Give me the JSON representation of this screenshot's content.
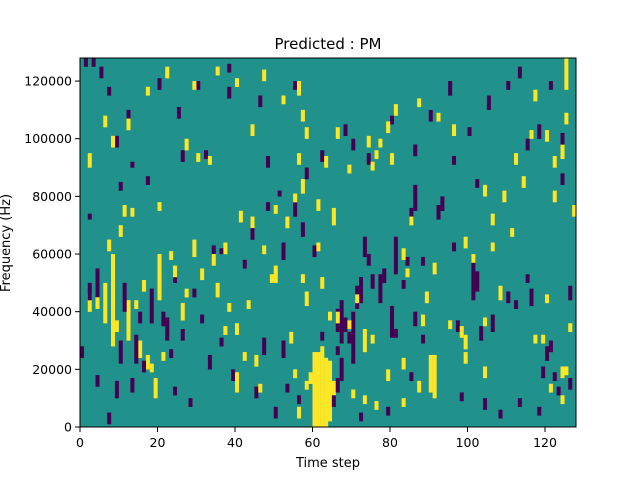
{
  "chart_data": {
    "type": "heatmap",
    "title": "Predicted : PM",
    "xlabel": "Time step",
    "ylabel": "Frequency (Hz)",
    "xlim": [
      0,
      128
    ],
    "ylim": [
      0,
      128000
    ],
    "x_ticks": [
      0,
      20,
      40,
      60,
      80,
      100,
      120
    ],
    "y_ticks": [
      0,
      20000,
      40000,
      60000,
      80000,
      100000,
      120000
    ],
    "y_tick_labels": [
      "0",
      "20000",
      "40000",
      "60000",
      "80000",
      "100000",
      "120000"
    ],
    "grid": false,
    "legend": "none",
    "n_time_steps": 128,
    "n_freq_bins": 128,
    "value_levels": [
      0,
      1,
      2
    ],
    "colors": {
      "0": "#440154",
      "1": "#21918c",
      "2": "#fde725"
    },
    "background_level": 1,
    "cells": [
      [
        2,
        46,
        40,
        2
      ],
      [
        6,
        50,
        36,
        2
      ],
      [
        8,
        60,
        28,
        2
      ],
      [
        12,
        44,
        30,
        2
      ],
      [
        15,
        30,
        24,
        2
      ],
      [
        17,
        25,
        20,
        2
      ],
      [
        19,
        17,
        10,
        2
      ],
      [
        26,
        43,
        37,
        2
      ],
      [
        20,
        60,
        44,
        2
      ],
      [
        29,
        65,
        59,
        2
      ],
      [
        41,
        75,
        71,
        2
      ],
      [
        44,
        73,
        67,
        2
      ],
      [
        50,
        56,
        50,
        2
      ],
      [
        60,
        26,
        0,
        2
      ],
      [
        61,
        26,
        0,
        2
      ],
      [
        62,
        28,
        0,
        2
      ],
      [
        63,
        24,
        0,
        2
      ],
      [
        64,
        23,
        2,
        2
      ],
      [
        65,
        16,
        8,
        2
      ],
      [
        60,
        15,
        0,
        2
      ],
      [
        60,
        22,
        20,
        2
      ],
      [
        62,
        10,
        6,
        2
      ],
      [
        90,
        25,
        12,
        2
      ],
      [
        91,
        25,
        10,
        2
      ],
      [
        99,
        32,
        27,
        2
      ],
      [
        58,
        16,
        13,
        2
      ],
      [
        59,
        19,
        15,
        2
      ],
      [
        58,
        47,
        45,
        2
      ],
      [
        108,
        49,
        44,
        2
      ],
      [
        124,
        98,
        93,
        2
      ],
      [
        125,
        128,
        117,
        2
      ],
      [
        57,
        86,
        81,
        2
      ],
      [
        65,
        76,
        70,
        2
      ],
      [
        73,
        34,
        26,
        2
      ],
      [
        35,
        50,
        45,
        2
      ],
      [
        2,
        50,
        44,
        0
      ],
      [
        4,
        55,
        44,
        0
      ],
      [
        11,
        50,
        40,
        0
      ],
      [
        15,
        40,
        36,
        0
      ],
      [
        18,
        48,
        36,
        0
      ],
      [
        22,
        38,
        30,
        0
      ],
      [
        26,
        34,
        30,
        0
      ],
      [
        10,
        30,
        22,
        0
      ],
      [
        14,
        32,
        22,
        0
      ],
      [
        9,
        16,
        10,
        0
      ],
      [
        13,
        17,
        12,
        0
      ],
      [
        33,
        25,
        20,
        0
      ],
      [
        47,
        31,
        25,
        0
      ],
      [
        52,
        30,
        24,
        0
      ],
      [
        66,
        41,
        33,
        0
      ],
      [
        67,
        44,
        29,
        0
      ],
      [
        68,
        38,
        33,
        0
      ],
      [
        69,
        33,
        29,
        0
      ],
      [
        70,
        40,
        22,
        0
      ],
      [
        66,
        28,
        25,
        0
      ],
      [
        65,
        11,
        7,
        0
      ],
      [
        66,
        17,
        12,
        0
      ],
      [
        67,
        24,
        16,
        0
      ],
      [
        80,
        42,
        31,
        0
      ],
      [
        81,
        34,
        31,
        0
      ],
      [
        77,
        53,
        43,
        0
      ],
      [
        71,
        49,
        41,
        0
      ],
      [
        72,
        52,
        43,
        0
      ],
      [
        73,
        66,
        59,
        0
      ],
      [
        74,
        60,
        56,
        0
      ],
      [
        81,
        66,
        53,
        0
      ],
      [
        86,
        40,
        35,
        0
      ],
      [
        96,
        64,
        61,
        0
      ],
      [
        101,
        59,
        44,
        0
      ],
      [
        102,
        54,
        47,
        0
      ],
      [
        112,
        44,
        41,
        0
      ],
      [
        116,
        48,
        42,
        0
      ],
      [
        120,
        28,
        23,
        0
      ],
      [
        121,
        30,
        26,
        0
      ],
      [
        122,
        19,
        16,
        0
      ],
      [
        126,
        49,
        44,
        0
      ],
      [
        126,
        17,
        13,
        0
      ],
      [
        119,
        21,
        17,
        0
      ],
      [
        106,
        39,
        33,
        0
      ],
      [
        103,
        35,
        30,
        0
      ],
      [
        86,
        84,
        75,
        0
      ],
      [
        85,
        76,
        71,
        0
      ],
      [
        83,
        51,
        48,
        0
      ],
      [
        52,
        64,
        58,
        0
      ],
      [
        60,
        63,
        59,
        0
      ],
      [
        75,
        53,
        48,
        0
      ],
      [
        78,
        55,
        50,
        0
      ],
      [
        84,
        59,
        56,
        0
      ],
      [
        88,
        59,
        56,
        0
      ],
      [
        34,
        63,
        59,
        0
      ],
      [
        29,
        48,
        45,
        0
      ],
      [
        31,
        39,
        36,
        0
      ],
      [
        24,
        53,
        50,
        0
      ],
      [
        21,
        40,
        35,
        0
      ],
      [
        48,
        78,
        75,
        0
      ],
      [
        55,
        78,
        73,
        0
      ],
      [
        57,
        71,
        66,
        0
      ],
      [
        42,
        58,
        55,
        0
      ],
      [
        48,
        94,
        90,
        0
      ],
      [
        51,
        82,
        80,
        0
      ],
      [
        2,
        74,
        72,
        0
      ],
      [
        10,
        85,
        82,
        0
      ],
      [
        13,
        92,
        90,
        0
      ],
      [
        17,
        87,
        84,
        0
      ],
      [
        26,
        96,
        92,
        0
      ],
      [
        32,
        96,
        93,
        0
      ],
      [
        38,
        126,
        123,
        0
      ],
      [
        38,
        118,
        114,
        0
      ],
      [
        36,
        62,
        60,
        0
      ],
      [
        93,
        80,
        75,
        0
      ],
      [
        105,
        115,
        110,
        0
      ],
      [
        110,
        120,
        117,
        0
      ],
      [
        113,
        125,
        121,
        0
      ],
      [
        115,
        100,
        96,
        0
      ],
      [
        118,
        105,
        100,
        0
      ],
      [
        121,
        120,
        117,
        0
      ],
      [
        124,
        88,
        84,
        0
      ],
      [
        124,
        102,
        98,
        0
      ],
      [
        102,
        86,
        83,
        0
      ],
      [
        100,
        104,
        101,
        0
      ],
      [
        95,
        120,
        115,
        0
      ],
      [
        90,
        110,
        106,
        0
      ],
      [
        86,
        98,
        94,
        0
      ],
      [
        80,
        108,
        105,
        0
      ],
      [
        74,
        95,
        91,
        0
      ],
      [
        70,
        100,
        96,
        0
      ],
      [
        68,
        105,
        101,
        0
      ],
      [
        62,
        96,
        92,
        0
      ],
      [
        58,
        90,
        86,
        0
      ],
      [
        55,
        120,
        117,
        0
      ],
      [
        46,
        115,
        111,
        0
      ],
      [
        30,
        120,
        117,
        0
      ],
      [
        12,
        110,
        106,
        0
      ],
      [
        20,
        121,
        117,
        0
      ],
      [
        25,
        111,
        107,
        0
      ],
      [
        9,
        101,
        97,
        0
      ],
      [
        5,
        125,
        121,
        0
      ],
      [
        3,
        128,
        125,
        0
      ],
      [
        1,
        128,
        125,
        0
      ],
      [
        7,
        118,
        115,
        0
      ],
      [
        44,
        69,
        65,
        0
      ],
      [
        92,
        77,
        72,
        0
      ],
      [
        96,
        94,
        91,
        0
      ],
      [
        98,
        12,
        9,
        0
      ],
      [
        104,
        10,
        6,
        0
      ],
      [
        108,
        6,
        3,
        0
      ],
      [
        113,
        10,
        7,
        0
      ],
      [
        118,
        7,
        4,
        0
      ],
      [
        123,
        14,
        11,
        0
      ],
      [
        53,
        15,
        12,
        0
      ],
      [
        50,
        7,
        3,
        0
      ],
      [
        45,
        14,
        10,
        0
      ],
      [
        39,
        20,
        16,
        0
      ],
      [
        28,
        10,
        7,
        0
      ],
      [
        16,
        23,
        19,
        0
      ],
      [
        24,
        14,
        11,
        0
      ],
      [
        7,
        5,
        1,
        0
      ],
      [
        4,
        18,
        14,
        0
      ],
      [
        0,
        28,
        24,
        0
      ],
      [
        23,
        27,
        24,
        0
      ],
      [
        36,
        31,
        28,
        0
      ],
      [
        56,
        11,
        8,
        0
      ],
      [
        62,
        33,
        30,
        0
      ],
      [
        72,
        5,
        2,
        0
      ],
      [
        79,
        7,
        4,
        0
      ],
      [
        85,
        19,
        16,
        0
      ],
      [
        88,
        32,
        29,
        0
      ],
      [
        97,
        37,
        33,
        0
      ],
      [
        110,
        47,
        43,
        0
      ],
      [
        115,
        53,
        50,
        0
      ],
      [
        4,
        45,
        41,
        2
      ],
      [
        9,
        37,
        33,
        2
      ],
      [
        14,
        44,
        41,
        2
      ],
      [
        18,
        22,
        19,
        2
      ],
      [
        21,
        26,
        23,
        2
      ],
      [
        24,
        56,
        52,
        2
      ],
      [
        27,
        48,
        45,
        2
      ],
      [
        31,
        55,
        51,
        2
      ],
      [
        34,
        60,
        56,
        2
      ],
      [
        40,
        36,
        32,
        2
      ],
      [
        40,
        19,
        12,
        2
      ],
      [
        42,
        26,
        23,
        2
      ],
      [
        45,
        25,
        21,
        2
      ],
      [
        46,
        15,
        12,
        2
      ],
      [
        49,
        53,
        50,
        2
      ],
      [
        54,
        33,
        29,
        2
      ],
      [
        56,
        7,
        3,
        2
      ],
      [
        55,
        20,
        17,
        2
      ],
      [
        57,
        53,
        50,
        2
      ],
      [
        53,
        73,
        69,
        2
      ],
      [
        55,
        81,
        78,
        2
      ],
      [
        56,
        95,
        91,
        2
      ],
      [
        57,
        110,
        106,
        2
      ],
      [
        56,
        120,
        115,
        2
      ],
      [
        58,
        104,
        100,
        2
      ],
      [
        62,
        52,
        48,
        2
      ],
      [
        64,
        40,
        37,
        2
      ],
      [
        69,
        37,
        34,
        2
      ],
      [
        71,
        46,
        43,
        2
      ],
      [
        75,
        32,
        29,
        2
      ],
      [
        75,
        92,
        89,
        2
      ],
      [
        76,
        96,
        93,
        2
      ],
      [
        77,
        100,
        97,
        2
      ],
      [
        79,
        106,
        102,
        2
      ],
      [
        81,
        112,
        108,
        2
      ],
      [
        83,
        62,
        58,
        2
      ],
      [
        85,
        73,
        70,
        2
      ],
      [
        83,
        24,
        20,
        2
      ],
      [
        83,
        10,
        7,
        2
      ],
      [
        87,
        16,
        12,
        2
      ],
      [
        88,
        39,
        35,
        2
      ],
      [
        89,
        47,
        43,
        2
      ],
      [
        91,
        57,
        53,
        2
      ],
      [
        95,
        37,
        34,
        2
      ],
      [
        98,
        35,
        31,
        2
      ],
      [
        99,
        26,
        22,
        2
      ],
      [
        99,
        66,
        62,
        2
      ],
      [
        101,
        60,
        57,
        2
      ],
      [
        104,
        21,
        17,
        2
      ],
      [
        104,
        38,
        35,
        2
      ],
      [
        106,
        64,
        61,
        2
      ],
      [
        106,
        74,
        70,
        2
      ],
      [
        109,
        82,
        78,
        2
      ],
      [
        111,
        69,
        66,
        2
      ],
      [
        114,
        87,
        83,
        2
      ],
      [
        117,
        32,
        29,
        2
      ],
      [
        119,
        32,
        29,
        2
      ],
      [
        121,
        15,
        12,
        2
      ],
      [
        124,
        11,
        8,
        2
      ],
      [
        120,
        46,
        43,
        2
      ],
      [
        124,
        21,
        17,
        2
      ],
      [
        125,
        21,
        18,
        2
      ],
      [
        126,
        36,
        33,
        2
      ],
      [
        127,
        77,
        73,
        2
      ],
      [
        122,
        82,
        78,
        2
      ],
      [
        122,
        94,
        90,
        2
      ],
      [
        125,
        109,
        105,
        2
      ],
      [
        117,
        117,
        113,
        2
      ],
      [
        116,
        103,
        100,
        2
      ],
      [
        120,
        103,
        99,
        2
      ],
      [
        112,
        95,
        91,
        2
      ],
      [
        104,
        84,
        80,
        2
      ],
      [
        96,
        105,
        101,
        2
      ],
      [
        92,
        109,
        106,
        2
      ],
      [
        87,
        114,
        111,
        2
      ],
      [
        80,
        95,
        91,
        2
      ],
      [
        74,
        101,
        97,
        2
      ],
      [
        69,
        91,
        88,
        2
      ],
      [
        66,
        104,
        100,
        2
      ],
      [
        61,
        79,
        75,
        2
      ],
      [
        58,
        45,
        42,
        2
      ],
      [
        52,
        115,
        112,
        2
      ],
      [
        47,
        124,
        120,
        2
      ],
      [
        44,
        105,
        101,
        2
      ],
      [
        40,
        121,
        118,
        2
      ],
      [
        35,
        125,
        122,
        2
      ],
      [
        29,
        120,
        117,
        2
      ],
      [
        22,
        125,
        121,
        2
      ],
      [
        17,
        118,
        115,
        2
      ],
      [
        12,
        107,
        103,
        2
      ],
      [
        6,
        108,
        104,
        2
      ],
      [
        8,
        101,
        97,
        2
      ],
      [
        2,
        95,
        90,
        2
      ],
      [
        7,
        65,
        61,
        2
      ],
      [
        10,
        70,
        66,
        2
      ],
      [
        11,
        77,
        73,
        2
      ],
      [
        13,
        76,
        73,
        2
      ],
      [
        16,
        51,
        47,
        2
      ],
      [
        20,
        78,
        75,
        2
      ],
      [
        23,
        61,
        58,
        2
      ],
      [
        27,
        100,
        96,
        2
      ],
      [
        30,
        95,
        92,
        2
      ],
      [
        33,
        94,
        91,
        2
      ],
      [
        37,
        64,
        60,
        2
      ],
      [
        38,
        43,
        40,
        2
      ],
      [
        37,
        35,
        32,
        2
      ],
      [
        43,
        44,
        41,
        2
      ],
      [
        50,
        77,
        74,
        2
      ],
      [
        47,
        63,
        60,
        2
      ],
      [
        61,
        64,
        61,
        2
      ],
      [
        63,
        94,
        90,
        2
      ],
      [
        66,
        40,
        36,
        2
      ],
      [
        70,
        13,
        10,
        2
      ],
      [
        73,
        11,
        8,
        2
      ],
      [
        76,
        9,
        6,
        2
      ],
      [
        79,
        20,
        16,
        2
      ],
      [
        84,
        55,
        52,
        2
      ]
    ]
  }
}
